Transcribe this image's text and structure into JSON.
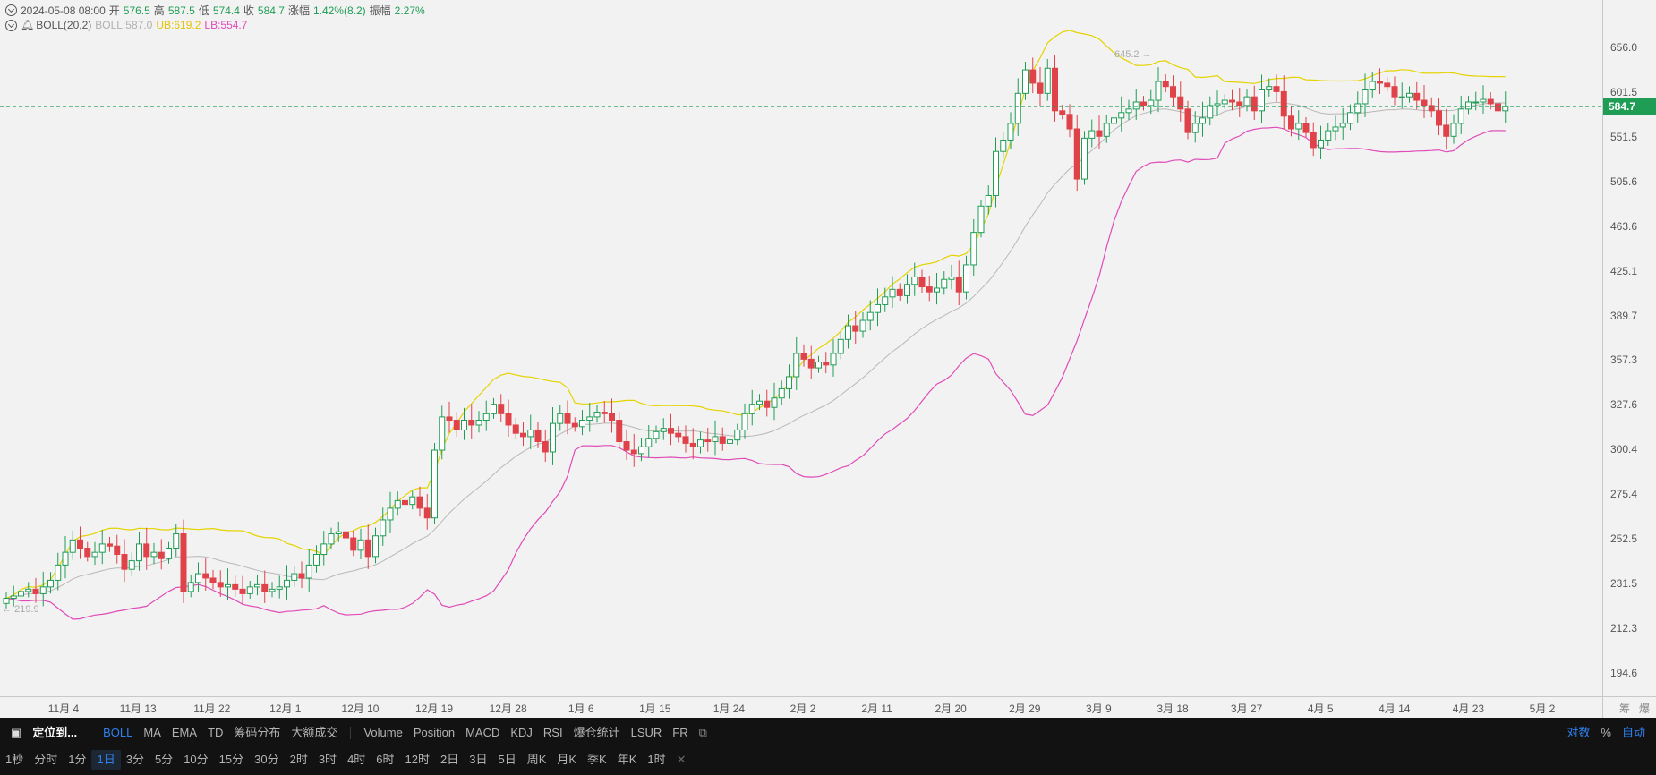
{
  "info": {
    "datetime": "2024-05-08 08:00",
    "open_label": "开",
    "open": "576.5",
    "high_label": "高",
    "high": "587.5",
    "low_label": "低",
    "low": "574.4",
    "close_label": "收",
    "close": "584.7",
    "change_label": "涨幅",
    "change": "1.42%(8.2)",
    "amp_label": "振幅",
    "amp": "2.27%"
  },
  "boll": {
    "name": "BOLL(20,2)",
    "mid": "BOLL:587.0",
    "ub": "UB:619.2",
    "lb": "LB:554.7"
  },
  "annotations": {
    "high_mark": "645.2",
    "low_mark": "219.9"
  },
  "price_axis": [
    "656.0",
    "601.5",
    "551.5",
    "505.6",
    "463.6",
    "425.1",
    "389.7",
    "357.3",
    "327.6",
    "300.4",
    "275.4",
    "252.5",
    "231.5",
    "212.3",
    "194.6"
  ],
  "last_price": "584.7",
  "time_axis": [
    "11月 4",
    "11月 13",
    "11月 22",
    "12月 1",
    "12月 10",
    "12月 19",
    "12月 28",
    "1月 6",
    "1月 15",
    "1月 24",
    "2月 2",
    "2月 11",
    "2月 20",
    "2月 29",
    "3月 9",
    "3月 18",
    "3月 27",
    "4月 5",
    "4月 14",
    "4月 23",
    "5月 2"
  ],
  "corner": [
    "筹",
    "爆"
  ],
  "toolbar": {
    "locate": "定位到...",
    "indicators_main": [
      "BOLL",
      "MA",
      "EMA",
      "TD",
      "筹码分布",
      "大额成交"
    ],
    "indicators_sub": [
      "Volume",
      "Position",
      "MACD",
      "KDJ",
      "RSI",
      "爆仓统计",
      "LSUR",
      "FR"
    ],
    "right": [
      "对数",
      "%",
      "自动"
    ],
    "timeframes": [
      "1秒",
      "分时",
      "1分",
      "1日",
      "3分",
      "5分",
      "10分",
      "15分",
      "30分",
      "2时",
      "3时",
      "4时",
      "6时",
      "12时",
      "2日",
      "3日",
      "5日",
      "周K",
      "月K",
      "季K",
      "年K",
      "1时"
    ]
  },
  "colors": {
    "up": "#1f9d55",
    "down": "#e0424a",
    "ub": "#e5d300",
    "mid": "#b8b8b8",
    "lb": "#e04bb8",
    "bg": "#f2f2f2",
    "accent": "#2f80ed"
  },
  "chart_data": {
    "type": "candlestick",
    "log_scale": true,
    "y_ticks": [
      656.0,
      601.5,
      551.5,
      505.6,
      463.6,
      425.1,
      389.7,
      357.3,
      327.6,
      300.4,
      275.4,
      252.5,
      231.5,
      212.3,
      194.6
    ],
    "x_ticks": [
      "11月 4",
      "11月 13",
      "11月 22",
      "12月 1",
      "12月 10",
      "12月 19",
      "12月 28",
      "1月 6",
      "1月 15",
      "1月 24",
      "2月 2",
      "2月 11",
      "2月 20",
      "2月 29",
      "3月 9",
      "3月 18",
      "3月 27",
      "4月 5",
      "4月 14",
      "4月 23",
      "5月 2"
    ],
    "close": [
      225,
      226,
      228,
      229,
      227,
      230,
      233,
      240,
      246,
      252,
      248,
      244,
      246,
      250,
      249,
      245,
      238,
      242,
      250,
      244,
      246,
      243,
      248,
      255,
      228,
      232,
      236,
      234,
      232,
      230,
      231,
      229,
      227,
      230,
      231,
      228,
      229,
      230,
      233,
      236,
      234,
      240,
      245,
      250,
      255,
      256,
      253,
      247,
      252,
      244,
      254,
      262,
      268,
      272,
      270,
      274,
      268,
      263,
      300,
      320,
      318,
      312,
      318,
      315,
      318,
      322,
      328,
      322,
      315,
      310,
      308,
      312,
      305,
      299,
      316,
      322,
      316,
      314,
      318,
      320,
      323,
      322,
      318,
      305,
      300,
      298,
      302,
      307,
      311,
      313,
      310,
      308,
      304,
      302,
      306,
      305,
      308,
      304,
      306,
      312,
      322,
      328,
      330,
      326,
      332,
      338,
      346,
      362,
      358,
      352,
      356,
      354,
      362,
      372,
      382,
      378,
      386,
      392,
      398,
      404,
      410,
      405,
      414,
      420,
      412,
      408,
      411,
      418,
      420,
      408,
      430,
      458,
      482,
      492,
      536,
      548,
      566,
      600,
      628,
      612,
      600,
      630,
      580,
      576,
      560,
      508,
      550,
      558,
      552,
      566,
      572,
      578,
      582,
      590,
      586,
      592,
      614,
      608,
      596,
      582,
      556,
      566,
      572,
      586,
      588,
      592,
      590,
      586,
      596,
      580,
      604,
      608,
      602,
      574,
      560,
      566,
      556,
      540,
      548,
      558,
      562,
      566,
      578,
      588,
      604,
      614,
      612,
      608,
      596,
      596,
      600,
      592,
      586,
      580,
      564,
      552,
      566,
      582,
      590,
      590,
      593,
      588,
      580,
      584.7
    ],
    "bollinger": {
      "period": 20,
      "mult": 2
    }
  }
}
